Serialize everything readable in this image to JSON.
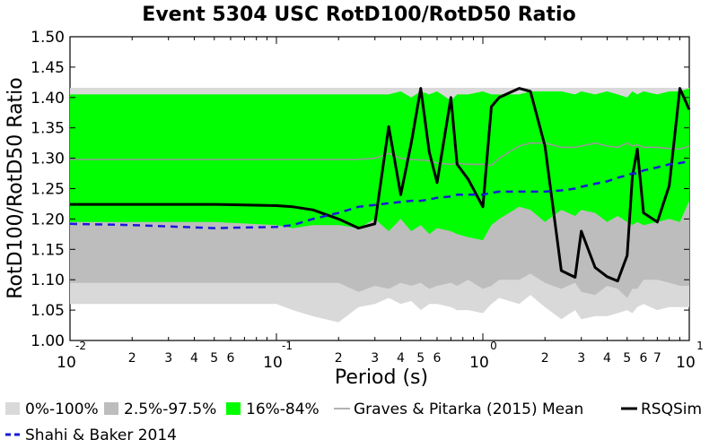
{
  "chart_data": {
    "type": "area",
    "title": "Event 5304 USC RotD100/RotD50 Ratio",
    "xlabel": "Period (s)",
    "ylabel": "RotD100/RotD50 Ratio",
    "x_scale": "log",
    "xlim": [
      0.01,
      10
    ],
    "ylim": [
      1.0,
      1.5
    ],
    "y_ticks": [
      "1.00",
      "1.05",
      "1.10",
      "1.15",
      "1.20",
      "1.25",
      "1.30",
      "1.35",
      "1.40",
      "1.45",
      "1.50"
    ],
    "x_major_ticks": [
      {
        "value": 0.01,
        "base": "10",
        "exp": "-2"
      },
      {
        "value": 0.1,
        "base": "10",
        "exp": "-1"
      },
      {
        "value": 1,
        "base": "10",
        "exp": "0"
      },
      {
        "value": 10,
        "base": "10",
        "exp": "1"
      }
    ],
    "x_minor_labels": [
      "2",
      "3",
      "4",
      "5",
      "6",
      "7",
      "8",
      "9"
    ],
    "x_minor_shown": {
      "2": true,
      "3": true,
      "4": true,
      "5": true,
      "6": true,
      "7": false,
      "8": false,
      "9": false
    },
    "x_minor_shown_decade3": {
      "2": true,
      "3": true,
      "4": true,
      "5": true,
      "6": true,
      "7": true,
      "8": false,
      "9": false
    },
    "period": [
      0.01,
      0.02,
      0.05,
      0.1,
      0.12,
      0.15,
      0.2,
      0.25,
      0.3,
      0.35,
      0.4,
      0.45,
      0.5,
      0.55,
      0.6,
      0.7,
      0.75,
      0.85,
      1.0,
      1.1,
      1.2,
      1.5,
      1.7,
      2.0,
      2.4,
      2.8,
      3.0,
      3.5,
      4.0,
      4.5,
      5.0,
      5.3,
      5.6,
      6.0,
      7.0,
      8.0,
      9.0,
      10.0
    ],
    "band_0_100": {
      "upper": [
        1.416,
        1.416,
        1.416,
        1.416,
        1.416,
        1.416,
        1.416,
        1.416,
        1.416,
        1.416,
        1.416,
        1.416,
        1.416,
        1.416,
        1.416,
        1.416,
        1.416,
        1.416,
        1.416,
        1.416,
        1.416,
        1.416,
        1.416,
        1.416,
        1.416,
        1.416,
        1.416,
        1.416,
        1.416,
        1.416,
        1.416,
        1.416,
        1.416,
        1.416,
        1.416,
        1.416,
        1.416,
        1.416
      ],
      "lower": [
        1.06,
        1.06,
        1.06,
        1.06,
        1.05,
        1.04,
        1.03,
        1.055,
        1.06,
        1.07,
        1.06,
        1.065,
        1.05,
        1.06,
        1.06,
        1.055,
        1.05,
        1.05,
        1.045,
        1.06,
        1.07,
        1.06,
        1.075,
        1.055,
        1.035,
        1.05,
        1.035,
        1.04,
        1.04,
        1.045,
        1.05,
        1.045,
        1.055,
        1.06,
        1.05,
        1.055,
        1.055,
        1.055
      ]
    },
    "band_2_5_97_5": {
      "upper": [
        1.405,
        1.405,
        1.405,
        1.405,
        1.405,
        1.405,
        1.405,
        1.405,
        1.405,
        1.405,
        1.41,
        1.4,
        1.41,
        1.405,
        1.41,
        1.395,
        1.405,
        1.405,
        1.41,
        1.405,
        1.405,
        1.405,
        1.41,
        1.41,
        1.41,
        1.405,
        1.41,
        1.405,
        1.41,
        1.405,
        1.4,
        1.41,
        1.405,
        1.41,
        1.405,
        1.41,
        1.41,
        1.415
      ],
      "lower": [
        1.095,
        1.095,
        1.095,
        1.095,
        1.095,
        1.095,
        1.095,
        1.08,
        1.09,
        1.085,
        1.095,
        1.09,
        1.095,
        1.085,
        1.09,
        1.095,
        1.09,
        1.1,
        1.085,
        1.09,
        1.1,
        1.1,
        1.11,
        1.095,
        1.085,
        1.095,
        1.08,
        1.075,
        1.09,
        1.085,
        1.07,
        1.085,
        1.085,
        1.1,
        1.1,
        1.095,
        1.09,
        1.09
      ]
    },
    "band_16_84": {
      "upper": [
        1.405,
        1.405,
        1.405,
        1.405,
        1.405,
        1.405,
        1.405,
        1.405,
        1.405,
        1.405,
        1.41,
        1.4,
        1.41,
        1.405,
        1.41,
        1.395,
        1.405,
        1.405,
        1.41,
        1.405,
        1.405,
        1.405,
        1.41,
        1.41,
        1.41,
        1.405,
        1.41,
        1.405,
        1.41,
        1.405,
        1.4,
        1.41,
        1.405,
        1.41,
        1.405,
        1.41,
        1.41,
        1.415
      ],
      "lower": [
        1.195,
        1.195,
        1.195,
        1.19,
        1.185,
        1.19,
        1.19,
        1.185,
        1.2,
        1.18,
        1.2,
        1.18,
        1.19,
        1.175,
        1.185,
        1.18,
        1.175,
        1.17,
        1.165,
        1.19,
        1.2,
        1.22,
        1.215,
        1.195,
        1.215,
        1.205,
        1.215,
        1.21,
        1.195,
        1.205,
        1.195,
        1.19,
        1.195,
        1.19,
        1.195,
        1.2,
        1.195,
        1.23
      ]
    },
    "series": [
      {
        "name": "Graves & Pitarka (2015) Mean",
        "color": "#999999",
        "values": [
          1.298,
          1.298,
          1.298,
          1.298,
          1.298,
          1.298,
          1.298,
          1.298,
          1.3,
          1.308,
          1.3,
          1.298,
          1.297,
          1.296,
          1.292,
          1.29,
          1.292,
          1.29,
          1.29,
          1.288,
          1.3,
          1.32,
          1.325,
          1.325,
          1.318,
          1.318,
          1.32,
          1.325,
          1.32,
          1.318,
          1.325,
          1.32,
          1.322,
          1.318,
          1.318,
          1.316,
          1.315,
          1.32
        ]
      },
      {
        "name": "RSQSim",
        "color": "#000000",
        "values": [
          1.224,
          1.224,
          1.224,
          1.222,
          1.22,
          1.215,
          1.2,
          1.185,
          1.192,
          1.352,
          1.24,
          1.325,
          1.415,
          1.31,
          1.26,
          1.4,
          1.29,
          1.265,
          1.22,
          1.385,
          1.4,
          1.415,
          1.41,
          1.32,
          1.115,
          1.104,
          1.18,
          1.12,
          1.105,
          1.098,
          1.14,
          1.27,
          1.315,
          1.21,
          1.195,
          1.255,
          1.415,
          1.38
        ]
      },
      {
        "name": "Shahi & Baker 2014",
        "color": "#1a1ad9",
        "values": [
          1.192,
          1.19,
          1.185,
          1.187,
          1.19,
          1.2,
          1.21,
          1.22,
          1.223,
          1.226,
          1.228,
          1.23,
          1.23,
          1.232,
          1.235,
          1.237,
          1.24,
          1.24,
          1.24,
          1.243,
          1.245,
          1.245,
          1.245,
          1.245,
          1.247,
          1.25,
          1.253,
          1.258,
          1.262,
          1.268,
          1.272,
          1.275,
          1.275,
          1.28,
          1.285,
          1.29,
          1.292,
          1.295
        ]
      }
    ],
    "legend": [
      {
        "label": "0%-100%",
        "kind": "patch",
        "color": "#d9d9d9"
      },
      {
        "label": "2.5%-97.5%",
        "kind": "patch",
        "color": "#bdbdbd"
      },
      {
        "label": "16%-84%",
        "kind": "patch",
        "color": "#00ff00"
      },
      {
        "label": "Graves & Pitarka (2015) Mean",
        "kind": "line",
        "color": "#999999",
        "dash": false
      },
      {
        "label": "RSQSim",
        "kind": "line",
        "color": "#000000",
        "dash": false
      },
      {
        "label": "Shahi & Baker 2014",
        "kind": "line",
        "color": "#1a1ad9",
        "dash": true
      }
    ],
    "legend_placement": "bottom",
    "grid": false,
    "colors": {
      "band_0_100": "#d9d9d9",
      "band_2_5_97_5": "#bdbdbd",
      "band_16_84": "#00ff00"
    }
  }
}
